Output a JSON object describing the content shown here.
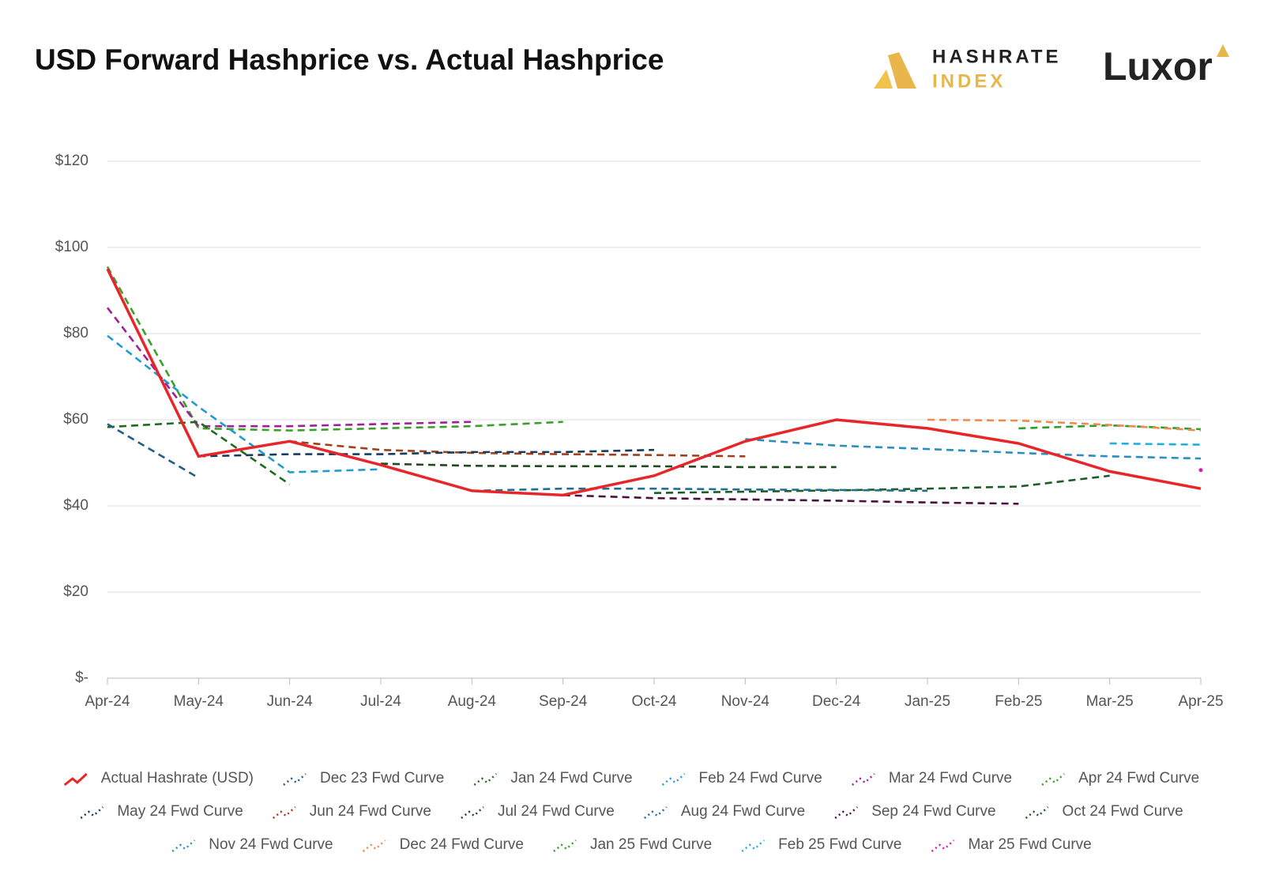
{
  "chart_data": {
    "type": "line",
    "title": "USD Forward Hashprice vs. Actual Hashprice",
    "brand": {
      "index_top": "HASHRATE",
      "index_bottom": "INDEX",
      "company": "Luxor"
    },
    "categories": [
      "Apr-24",
      "May-24",
      "Jun-24",
      "Jul-24",
      "Aug-24",
      "Sep-24",
      "Oct-24",
      "Nov-24",
      "Dec-24",
      "Jan-25",
      "Feb-25",
      "Mar-25",
      "Apr-25"
    ],
    "ylim": [
      0,
      120
    ],
    "yticks": [
      {
        "value": 0,
        "label": "$-"
      },
      {
        "value": 20,
        "label": "$20"
      },
      {
        "value": 40,
        "label": "$40"
      },
      {
        "value": 60,
        "label": "$60"
      },
      {
        "value": 80,
        "label": "$80"
      },
      {
        "value": 100,
        "label": "$100"
      },
      {
        "value": 120,
        "label": "$120"
      }
    ],
    "grid": true,
    "legend": "bottom",
    "series": [
      {
        "name": "Actual Hashrate (USD)",
        "color": "#e8262a",
        "style": "solid",
        "values": [
          95,
          51.5,
          55,
          49.5,
          43.5,
          42.5,
          47,
          55,
          60,
          58,
          54.5,
          48,
          44
        ]
      },
      {
        "name": "Dec 23 Fwd Curve",
        "color": "#1f5f87",
        "style": "dashed",
        "values": [
          59,
          46.5,
          null,
          null,
          null,
          null,
          null,
          null,
          null,
          null,
          null,
          null,
          null
        ]
      },
      {
        "name": "Jan 24 Fwd Curve",
        "color": "#1e6b1e",
        "style": "dashed",
        "values": [
          58.3,
          59.5,
          45,
          null,
          null,
          null,
          null,
          null,
          null,
          null,
          null,
          null,
          null
        ]
      },
      {
        "name": "Feb 24 Fwd Curve",
        "color": "#1f9bd0",
        "style": "dashed",
        "values": [
          79.5,
          63,
          47.8,
          48.5,
          null,
          null,
          null,
          null,
          null,
          null,
          null,
          null,
          null
        ]
      },
      {
        "name": "Mar 24 Fwd Curve",
        "color": "#a0209a",
        "style": "dashed",
        "values": [
          86,
          58.5,
          58.5,
          59,
          59.5,
          null,
          null,
          null,
          null,
          null,
          null,
          null,
          null
        ]
      },
      {
        "name": "Apr 24 Fwd Curve",
        "color": "#3aa02a",
        "style": "dashed",
        "values": [
          95.5,
          58,
          57.5,
          58,
          58.5,
          59.5,
          null,
          null,
          null,
          null,
          null,
          null,
          null
        ]
      },
      {
        "name": "May 24 Fwd Curve",
        "color": "#1a3a5c",
        "style": "dashed",
        "values": [
          null,
          51.5,
          52,
          52,
          52.5,
          52.5,
          53,
          null,
          null,
          null,
          null,
          null,
          null
        ]
      },
      {
        "name": "Jun 24 Fwd Curve",
        "color": "#a0401a",
        "style": "dashed",
        "values": [
          null,
          null,
          55,
          53,
          52.3,
          52,
          51.8,
          51.5,
          null,
          null,
          null,
          null,
          null
        ]
      },
      {
        "name": "Jul 24 Fwd Curve",
        "color": "#1e4a1e",
        "style": "dashed",
        "values": [
          null,
          null,
          null,
          49.8,
          49.3,
          49.2,
          49.2,
          49,
          49,
          null,
          null,
          null,
          null
        ]
      },
      {
        "name": "Aug 24 Fwd Curve",
        "color": "#1f6f8f",
        "style": "dashed",
        "values": [
          null,
          null,
          null,
          null,
          43.5,
          44,
          44,
          43.8,
          43.7,
          43.5,
          null,
          null,
          null
        ]
      },
      {
        "name": "Sep 24 Fwd Curve",
        "color": "#4a1040",
        "style": "dashed",
        "values": [
          null,
          null,
          null,
          null,
          null,
          42.5,
          41.8,
          41.5,
          41.2,
          40.8,
          40.5,
          null,
          null
        ]
      },
      {
        "name": "Oct 24 Fwd Curve",
        "color": "#1e5a2a",
        "style": "dashed",
        "values": [
          null,
          null,
          null,
          null,
          null,
          null,
          43,
          43.3,
          43.6,
          44,
          44.5,
          47,
          null
        ]
      },
      {
        "name": "Nov 24 Fwd Curve",
        "color": "#2a8fc0",
        "style": "dashed",
        "values": [
          null,
          null,
          null,
          null,
          null,
          null,
          null,
          55.5,
          54,
          53.2,
          52.3,
          51.5,
          51
        ]
      },
      {
        "name": "Dec 24 Fwd Curve",
        "color": "#f08a50",
        "style": "dashed",
        "values": [
          null,
          null,
          null,
          null,
          null,
          null,
          null,
          null,
          null,
          60,
          59.8,
          58.8,
          57.5
        ]
      },
      {
        "name": "Jan 25 Fwd Curve",
        "color": "#2aa02a",
        "style": "dashed",
        "values": [
          null,
          null,
          null,
          null,
          null,
          null,
          null,
          null,
          null,
          null,
          58,
          58.7,
          57.8
        ]
      },
      {
        "name": "Feb 25 Fwd Curve",
        "color": "#20b0e0",
        "style": "dashed",
        "values": [
          null,
          null,
          null,
          null,
          null,
          null,
          null,
          null,
          null,
          null,
          null,
          54.5,
          54.2
        ]
      },
      {
        "name": "Mar 25 Fwd Curve",
        "color": "#d020b0",
        "style": "dashed",
        "values": [
          null,
          null,
          null,
          null,
          null,
          null,
          null,
          null,
          null,
          null,
          null,
          null,
          48.3
        ]
      }
    ]
  }
}
